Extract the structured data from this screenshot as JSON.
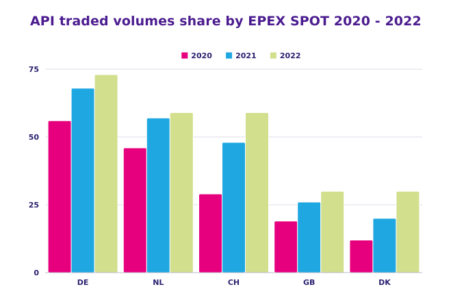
{
  "chart_data": {
    "type": "bar",
    "title": "API traded volumes share by EPEX SPOT 2020 - 2022",
    "xlabel": "",
    "ylabel": "",
    "categories": [
      "DE",
      "NL",
      "CH",
      "GB",
      "DK"
    ],
    "series": [
      {
        "name": "2020",
        "color": "#e6007e",
        "values": [
          56,
          46,
          29,
          19,
          12
        ]
      },
      {
        "name": "2021",
        "color": "#1ea7e1",
        "values": [
          68,
          57,
          48,
          26,
          20
        ]
      },
      {
        "name": "2022",
        "color": "#d2df8c",
        "values": [
          73,
          59,
          59,
          30,
          30
        ]
      }
    ],
    "ylim": [
      0,
      75
    ],
    "yticks": [
      0,
      25,
      50,
      75
    ],
    "grid": true,
    "legend": "top-center",
    "gridline_color": "#dddde8",
    "axis_color": "#b9b9c9",
    "bar_border_color": "#ffffff"
  }
}
